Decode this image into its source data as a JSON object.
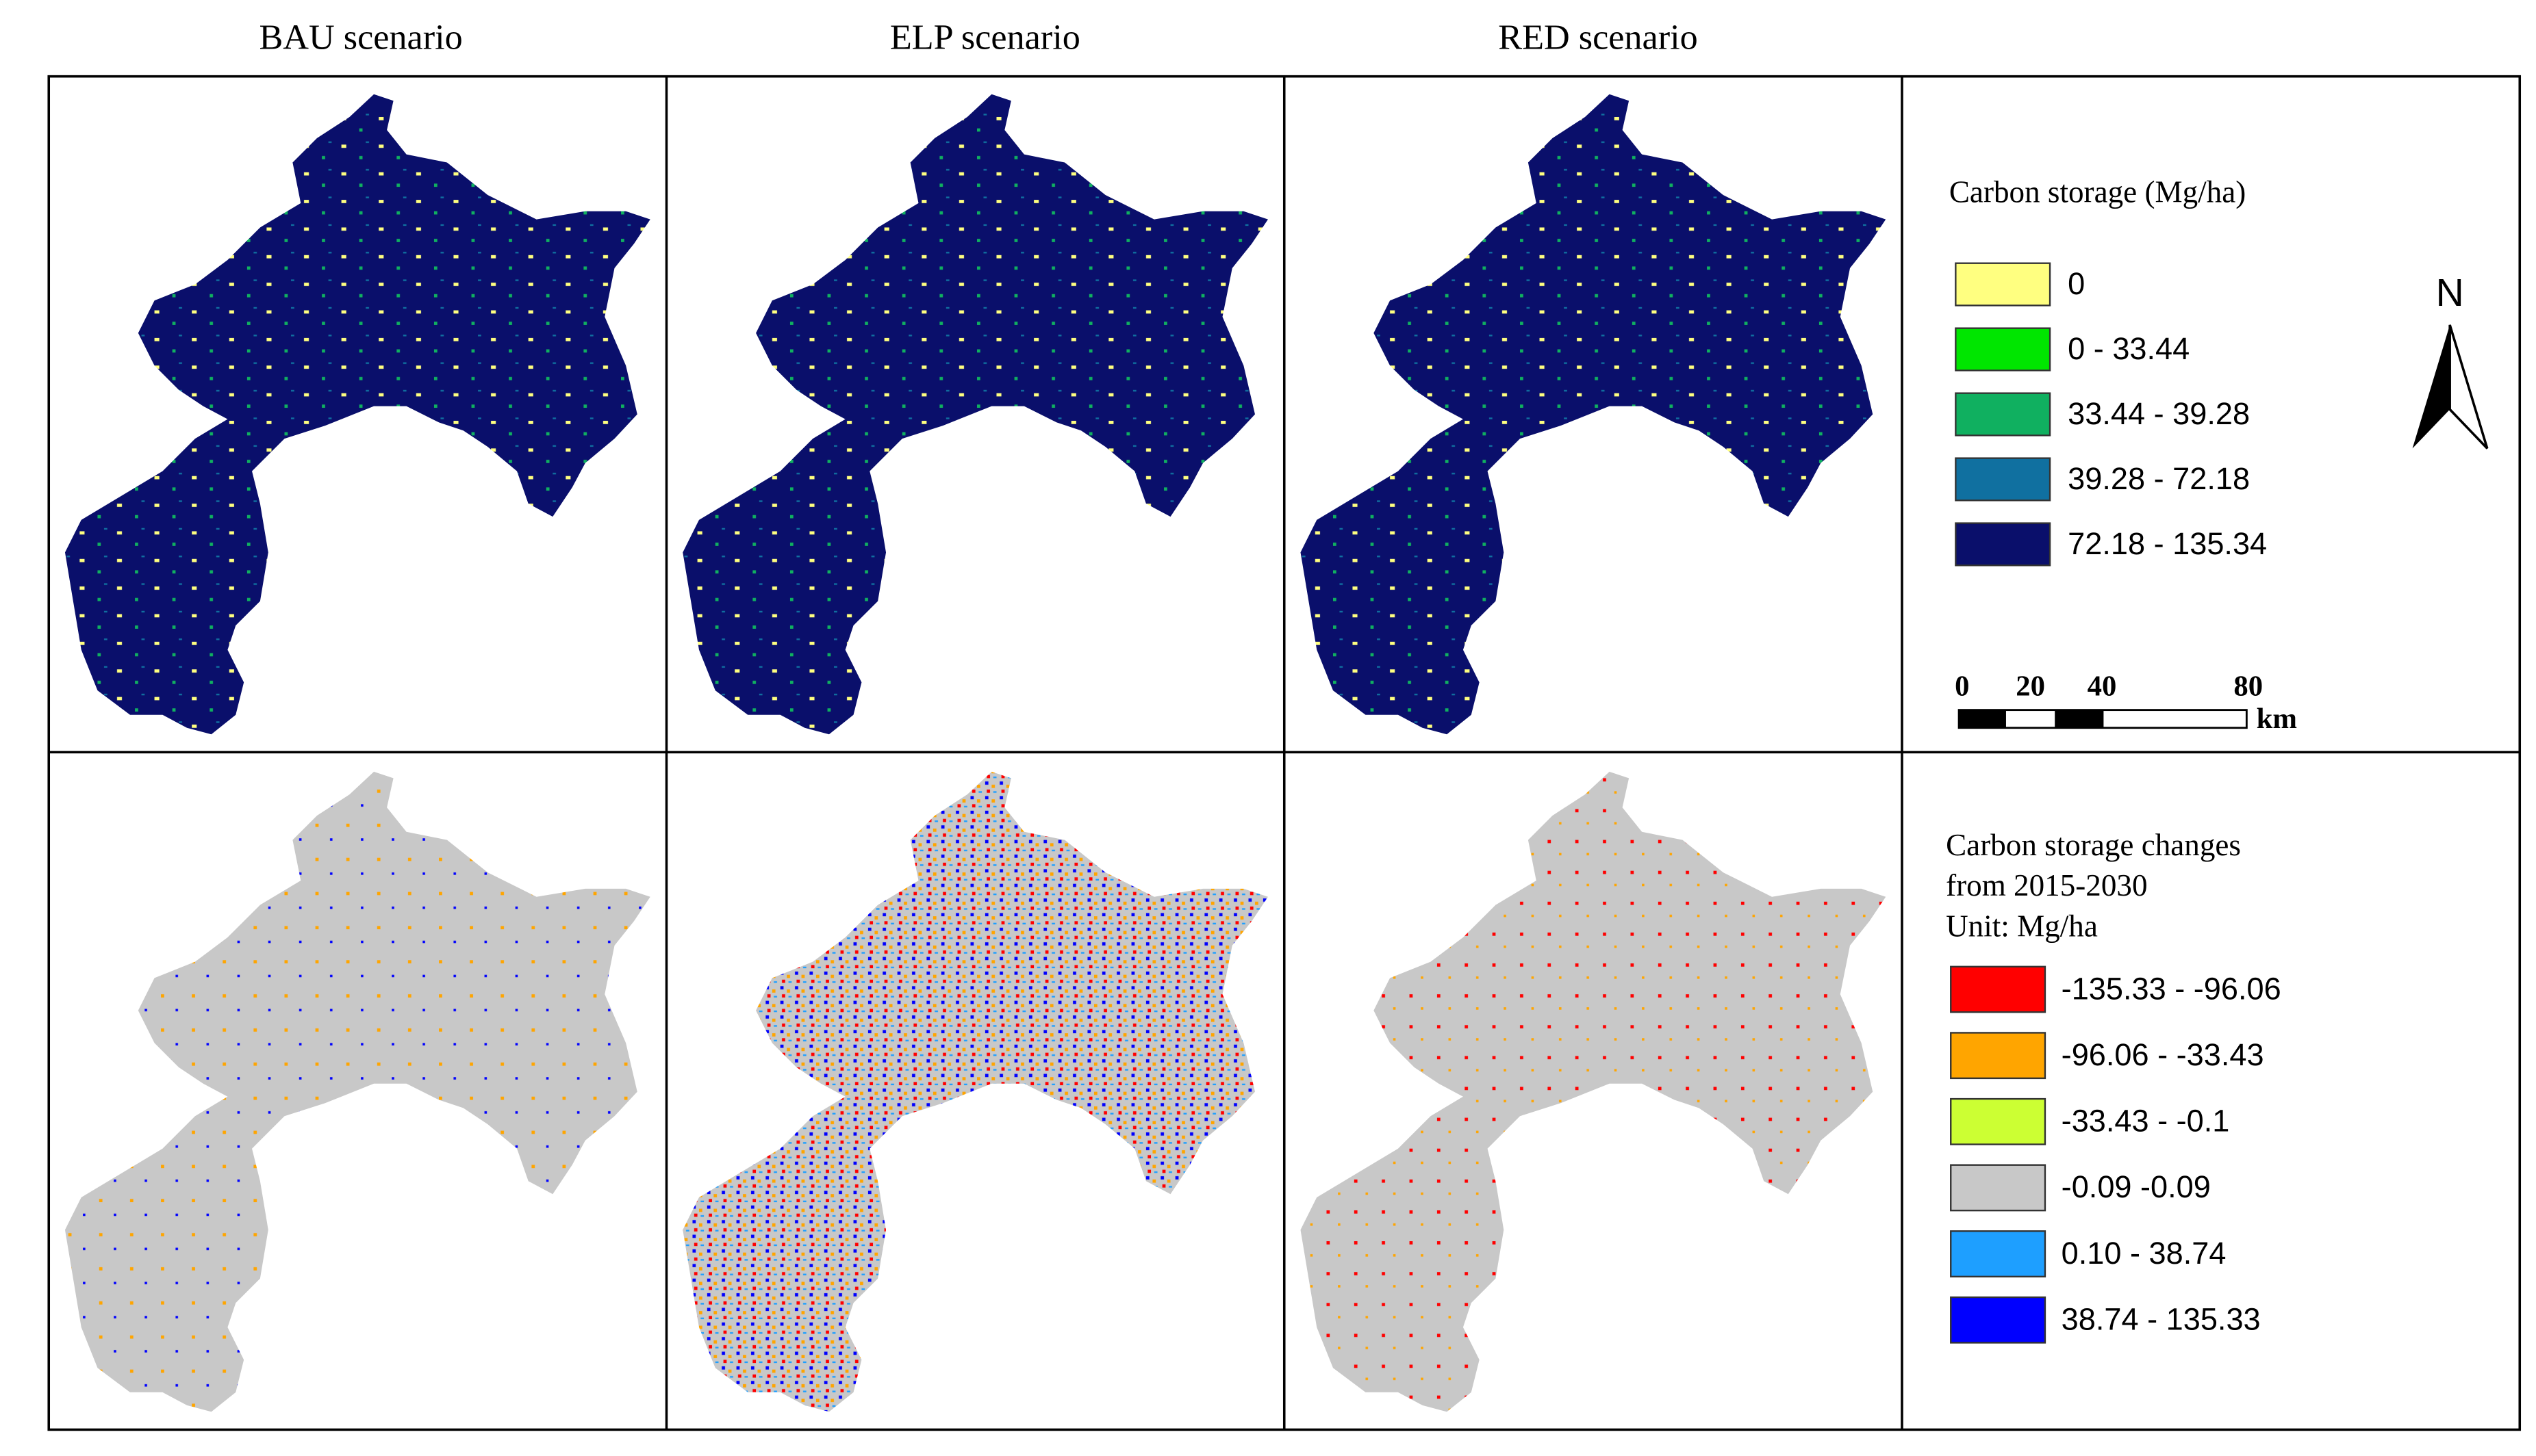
{
  "columns": [
    "BAU scenario",
    "ELP scenario",
    "RED scenario"
  ],
  "legend_storage": {
    "title": "Carbon storage (Mg/ha)",
    "items": [
      {
        "label": "0",
        "color": "#ffff80"
      },
      {
        "label": "0 - 33.44",
        "color": "#00e600"
      },
      {
        "label": "33.44 - 39.28",
        "color": "#10b060"
      },
      {
        "label": "39.28 - 72.18",
        "color": "#1070a0"
      },
      {
        "label": "72.18 - 135.34",
        "color": "#0a0f6b"
      }
    ]
  },
  "scale_bar": {
    "ticks": [
      "0",
      "20",
      "40",
      "80"
    ],
    "unit": "km"
  },
  "north": "N",
  "legend_change": {
    "title": [
      "Carbon storage changes",
      "from 2015-2030",
      "Unit: Mg/ha"
    ],
    "items": [
      {
        "label": "-135.33 - -96.06",
        "color": "#ff0000"
      },
      {
        "label": "-96.06 - -33.43",
        "color": "#ffa500"
      },
      {
        "label": "-33.43 - -0.1",
        "color": "#ccff33"
      },
      {
        "label": "-0.09 -0.09",
        "color": "#c8c8c8"
      },
      {
        "label": "0.10 - 38.74",
        "color": "#1e9fff"
      },
      {
        "label": "38.74 - 135.33",
        "color": "#0000ff"
      }
    ]
  }
}
